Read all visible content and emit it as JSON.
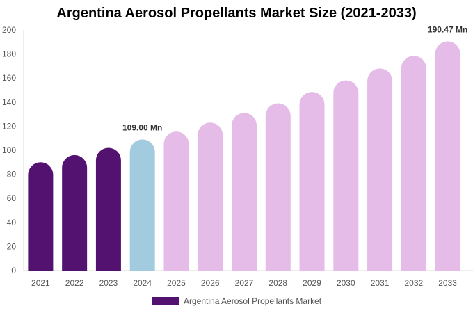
{
  "chart_data": {
    "type": "bar",
    "title": "Argentina Aerosol Propellants Market Size (2021-2033)",
    "categories": [
      "2021",
      "2022",
      "2023",
      "2024",
      "2025",
      "2026",
      "2027",
      "2028",
      "2029",
      "2030",
      "2031",
      "2032",
      "2033"
    ],
    "series": [
      {
        "name": "Argentina Aerosol Propellants Market",
        "values": [
          90,
          96,
          102,
          109,
          115.5,
          123,
          131,
          139,
          148.5,
          158,
          168,
          178.5,
          190.47
        ]
      }
    ],
    "data_labels": [
      {
        "category": "2024",
        "text": "109.00 Mn"
      },
      {
        "category": "2033",
        "text": "190.47 Mn"
      }
    ],
    "ylim": [
      0,
      200
    ],
    "yticks": [
      0,
      20,
      40,
      60,
      80,
      100,
      120,
      140,
      160,
      180,
      200
    ],
    "grid": false,
    "legend": "bottom",
    "colors": {
      "historical": "#541270",
      "base_year": "#a3cbe0",
      "forecast": "#e5bbe8"
    },
    "xlabel": "",
    "ylabel": ""
  }
}
